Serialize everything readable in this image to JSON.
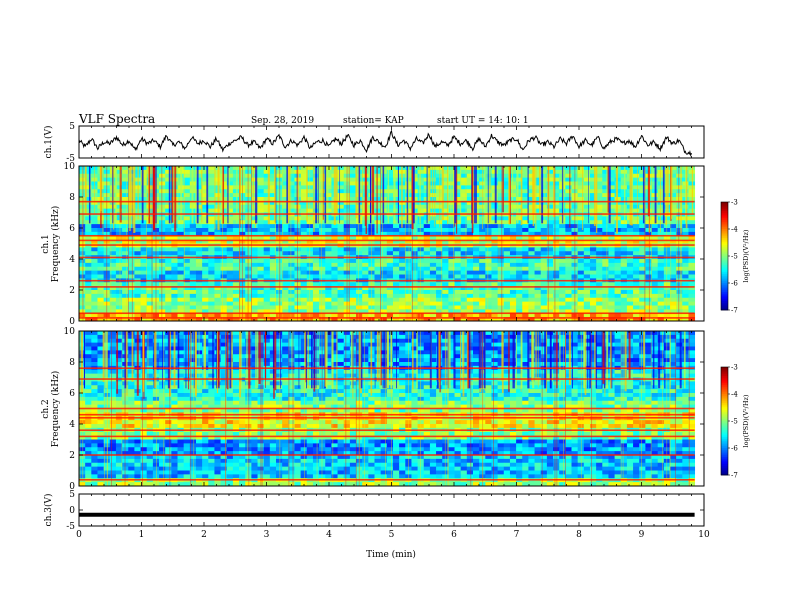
{
  "header": {
    "title": "VLF Spectra",
    "date": "Sep. 28, 2019",
    "station": "station= KAP",
    "start": "start  UT =   14: 10: 1"
  },
  "chart_data": [
    {
      "id": "ch1-waveform",
      "type": "line",
      "ylabel": "ch.1(V)",
      "ylim": [
        -5,
        5
      ],
      "yticks": [
        "5",
        "-5"
      ],
      "xlim": [
        0,
        10
      ],
      "x": [
        0,
        0.1,
        0.2,
        0.3,
        0.4,
        0.5,
        0.6,
        0.7,
        0.8,
        0.9,
        1.0,
        1.1,
        1.2,
        1.3,
        1.4,
        1.5,
        1.6,
        1.7,
        1.8,
        1.9,
        2.0,
        2.1,
        2.2,
        2.3,
        2.4,
        2.5,
        2.6,
        2.7,
        2.8,
        2.9,
        3.0,
        3.1,
        3.2,
        3.3,
        3.4,
        3.5,
        3.6,
        3.7,
        3.8,
        3.9,
        4.0,
        4.1,
        4.2,
        4.3,
        4.4,
        4.5,
        4.6,
        4.7,
        4.8,
        4.9,
        5.0,
        5.1,
        5.2,
        5.3,
        5.4,
        5.5,
        5.6,
        5.7,
        5.8,
        5.9,
        6.0,
        6.1,
        6.2,
        6.3,
        6.4,
        6.5,
        6.6,
        6.7,
        6.8,
        6.9,
        7.0,
        7.1,
        7.2,
        7.3,
        7.4,
        7.5,
        7.6,
        7.7,
        7.8,
        7.9,
        8.0,
        8.1,
        8.2,
        8.3,
        8.4,
        8.5,
        8.6,
        8.7,
        8.8,
        8.9,
        9.0,
        9.1,
        9.2,
        9.3,
        9.4,
        9.5,
        9.6,
        9.7,
        9.8
      ],
      "y": [
        0.5,
        -1.5,
        1.0,
        -2.0,
        0.0,
        -0.5,
        1.5,
        -1.0,
        0.5,
        -2.5,
        1.0,
        -0.5,
        0.5,
        -1.5,
        2.0,
        -1.0,
        0.0,
        -2.0,
        1.5,
        -0.5,
        0.5,
        -1.5,
        1.0,
        -2.5,
        -0.5,
        0.5,
        1.5,
        -1.0,
        0.0,
        -2.0,
        1.0,
        -0.5,
        2.0,
        -1.5,
        0.5,
        -1.0,
        1.5,
        -2.0,
        0.0,
        0.5,
        -1.5,
        1.0,
        -0.5,
        2.0,
        -1.0,
        0.5,
        -2.5,
        1.5,
        0.0,
        -1.5,
        3.0,
        -1.0,
        0.5,
        -2.0,
        1.0,
        -0.5,
        2.5,
        -1.5,
        0.0,
        -1.0,
        1.5,
        -0.5,
        0.5,
        -2.0,
        1.0,
        -1.5,
        2.0,
        0.0,
        -1.0,
        0.5,
        1.0,
        -2.5,
        0.5,
        1.5,
        -1.0,
        0.0,
        -1.5,
        1.0,
        -0.5,
        2.0,
        -1.5,
        0.5,
        -1.0,
        1.5,
        -2.0,
        0.0,
        1.0,
        -0.5,
        0.5,
        -1.5,
        2.0,
        -1.0,
        0.0,
        -2.0,
        1.5,
        -0.5,
        0.5,
        -3.0,
        -3.5
      ]
    },
    {
      "id": "ch1-spectrogram",
      "type": "heatmap",
      "ylabel": "ch.1\nFrequency (kHz)",
      "ylim": [
        0,
        10
      ],
      "yticks": [
        "0",
        "2",
        "4",
        "6",
        "8",
        "10"
      ],
      "xlim": [
        0,
        10
      ],
      "x_extent": [
        0,
        9.85
      ],
      "colorbar": {
        "label": "log(PSD)(V²/Hz)",
        "range": [
          -7,
          -3
        ],
        "ticks": [
          "-3",
          "-4",
          "-5",
          "-6",
          "-7"
        ]
      },
      "bands_khz": [
        {
          "from": 0,
          "to": 0.6,
          "level": -4.2
        },
        {
          "from": 0.6,
          "to": 1.6,
          "level": -4.9
        },
        {
          "from": 1.6,
          "to": 2.5,
          "level": -5.2
        },
        {
          "from": 2.5,
          "to": 3.2,
          "level": -5.6
        },
        {
          "from": 3.2,
          "to": 4.0,
          "level": -5.3
        },
        {
          "from": 4.0,
          "to": 4.8,
          "level": -5.6
        },
        {
          "from": 4.8,
          "to": 5.5,
          "level": -4.7
        },
        {
          "from": 5.5,
          "to": 6.3,
          "level": -5.8
        },
        {
          "from": 6.3,
          "to": 10,
          "level": -5.1
        }
      ],
      "lines_khz": [
        0.2,
        0.5,
        2.2,
        2.6,
        4.1,
        4.9,
        5.2,
        5.5,
        6.9,
        7.7
      ]
    },
    {
      "id": "ch2-spectrogram",
      "type": "heatmap",
      "ylabel": "ch.2\nFrequency (kHz)",
      "ylim": [
        0,
        10
      ],
      "yticks": [
        "0",
        "2",
        "4",
        "6",
        "8",
        "10"
      ],
      "xlim": [
        0,
        10
      ],
      "x_extent": [
        0,
        9.85
      ],
      "colorbar": {
        "label": "log(PSD)(V²/Hz)",
        "range": [
          -7,
          -3
        ],
        "ticks": [
          "-3",
          "-4",
          "-5",
          "-6",
          "-7"
        ]
      },
      "bands_khz": [
        {
          "from": 0,
          "to": 0.6,
          "level": -4.9
        },
        {
          "from": 0.6,
          "to": 2.0,
          "level": -5.7
        },
        {
          "from": 2.0,
          "to": 3.0,
          "level": -5.9
        },
        {
          "from": 3.0,
          "to": 3.8,
          "level": -5.0
        },
        {
          "from": 3.8,
          "to": 4.8,
          "level": -4.5
        },
        {
          "from": 4.8,
          "to": 5.6,
          "level": -5.0
        },
        {
          "from": 5.6,
          "to": 7.5,
          "level": -5.4
        },
        {
          "from": 7.5,
          "to": 10,
          "level": -5.9
        }
      ],
      "lines_khz": [
        0.4,
        2.0,
        3.2,
        3.6,
        4.4,
        4.6,
        5.0,
        6.9,
        7.6
      ]
    },
    {
      "id": "ch3-waveform",
      "type": "line",
      "ylabel": "ch.3(V)",
      "xlabel": "Time (min)",
      "ylim": [
        -5,
        5
      ],
      "yticks": [
        "5",
        "0",
        "-5"
      ],
      "xlim": [
        0,
        10
      ],
      "xticks": [
        "0",
        "1",
        "2",
        "3",
        "4",
        "5",
        "6",
        "7",
        "8",
        "9",
        "10"
      ],
      "x": [
        0,
        9.85
      ],
      "y": [
        -1.5,
        -1.5
      ]
    }
  ]
}
